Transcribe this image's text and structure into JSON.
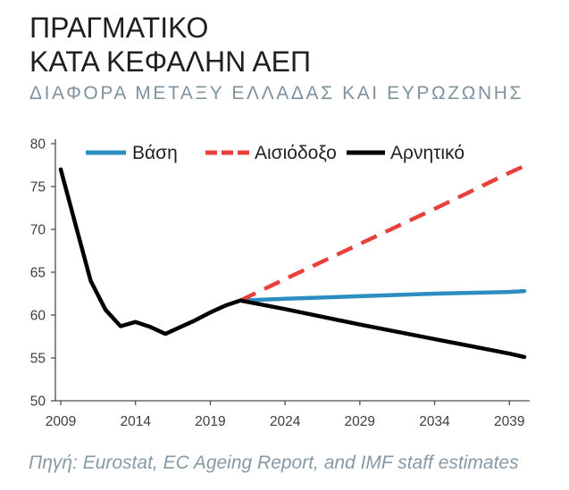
{
  "chart_data": {
    "type": "line",
    "title": "ΠΡΑΓΜΑΤΙΚΟ\nΚΑΤΑ ΚΕΦΑΛΗΝ ΑΕΠ",
    "subtitle": "ΔΙΑΦΟΡΑ ΜΕΤΑΞΥ ΕΛΛΑΔΑΣ ΚΑΙ ΕΥΡΩΖΩΝΗΣ",
    "source": "Πηγή: Eurostat, EC Ageing Report, and IMF staff estimates",
    "xlim": [
      2009,
      2040
    ],
    "ylim": [
      50,
      80
    ],
    "xticks": [
      2009,
      2014,
      2019,
      2024,
      2029,
      2034,
      2039
    ],
    "yticks": [
      50,
      55,
      60,
      65,
      70,
      75,
      80
    ],
    "grid": false,
    "legend": "top",
    "series": [
      {
        "name": "Βάση",
        "color": "#2c8ec0",
        "dashed": false,
        "x": [
          2021,
          2024,
          2029,
          2034,
          2039,
          2040
        ],
        "y": [
          61.7,
          61.9,
          62.2,
          62.5,
          62.7,
          62.8
        ]
      },
      {
        "name": "Αισιόδοξο",
        "color": "#e8403a",
        "dashed": true,
        "x": [
          2021,
          2024,
          2029,
          2034,
          2039,
          2040
        ],
        "y": [
          61.7,
          64.2,
          68.3,
          72.4,
          76.6,
          77.4
        ]
      },
      {
        "name": "Αρνητικό",
        "color": "#000000",
        "dashed": false,
        "x": [
          2009,
          2010,
          2011,
          2012,
          2013,
          2014,
          2015,
          2016,
          2017,
          2018,
          2019,
          2020,
          2021,
          2024,
          2029,
          2034,
          2039,
          2040
        ],
        "y": [
          77.0,
          70.5,
          64.0,
          60.6,
          58.7,
          59.2,
          58.6,
          57.8,
          58.6,
          59.4,
          60.3,
          61.1,
          61.7,
          60.7,
          58.9,
          57.2,
          55.5,
          55.1
        ]
      }
    ]
  },
  "colors": {
    "title_text": "#1f1f1f",
    "subtitle_text": "#7f929f",
    "source_text": "#8699a6",
    "axis": "#4d4d4d"
  }
}
